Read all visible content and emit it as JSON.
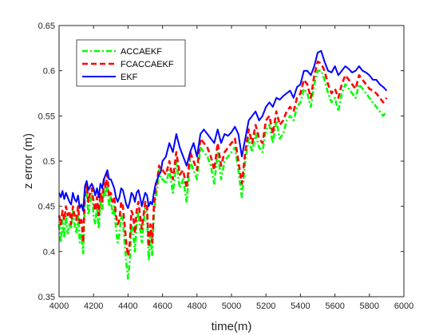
{
  "chart_data": {
    "type": "line",
    "xlabel": "time(m)",
    "ylabel": "z error (m)",
    "xlim": [
      4000,
      6000
    ],
    "ylim": [
      0.35,
      0.65
    ],
    "xticks": [
      4000,
      4200,
      4400,
      4600,
      4800,
      5000,
      5200,
      5400,
      5600,
      5800,
      6000
    ],
    "yticks": [
      0.35,
      0.4,
      0.45,
      0.5,
      0.55,
      0.6,
      0.65
    ],
    "xtick_labels": [
      "4000",
      "4200",
      "4400",
      "4600",
      "4800",
      "5000",
      "5200",
      "5400",
      "5600",
      "5800",
      "6000"
    ],
    "ytick_labels": [
      "0.35",
      "0.4",
      "0.45",
      "0.5",
      "0.55",
      "0.6",
      "0.65"
    ],
    "grid": false,
    "legend_position": "top-left",
    "series": [
      {
        "name": "ACCAEKF",
        "color": "#00ff00",
        "style": "dash-dot",
        "x": [
          4000,
          4010,
          4020,
          4030,
          4040,
          4050,
          4060,
          4070,
          4080,
          4090,
          4100,
          4110,
          4120,
          4130,
          4140,
          4150,
          4160,
          4170,
          4180,
          4190,
          4200,
          4210,
          4220,
          4230,
          4240,
          4250,
          4260,
          4270,
          4280,
          4290,
          4300,
          4310,
          4320,
          4330,
          4340,
          4350,
          4360,
          4370,
          4380,
          4390,
          4400,
          4410,
          4420,
          4430,
          4440,
          4450,
          4460,
          4470,
          4480,
          4490,
          4500,
          4510,
          4520,
          4530,
          4540,
          4550,
          4560,
          4570,
          4580,
          4590,
          4600,
          4620,
          4640,
          4660,
          4680,
          4700,
          4720,
          4740,
          4760,
          4780,
          4800,
          4820,
          4840,
          4860,
          4880,
          4900,
          4920,
          4940,
          4960,
          4980,
          5000,
          5020,
          5040,
          5060,
          5080,
          5100,
          5120,
          5140,
          5160,
          5180,
          5200,
          5220,
          5240,
          5260,
          5280,
          5300,
          5320,
          5340,
          5360,
          5380,
          5400,
          5420,
          5440,
          5460,
          5480,
          5500,
          5520,
          5540,
          5560,
          5580,
          5600,
          5620,
          5640,
          5660,
          5680,
          5700,
          5720,
          5740,
          5760,
          5780,
          5800,
          5820,
          5840,
          5860,
          5880,
          5900
        ],
        "y": [
          0.43,
          0.41,
          0.435,
          0.415,
          0.44,
          0.42,
          0.43,
          0.425,
          0.445,
          0.43,
          0.42,
          0.44,
          0.41,
          0.42,
          0.398,
          0.46,
          0.47,
          0.44,
          0.455,
          0.465,
          0.44,
          0.43,
          0.45,
          0.425,
          0.455,
          0.445,
          0.47,
          0.46,
          0.475,
          0.45,
          0.46,
          0.44,
          0.45,
          0.425,
          0.41,
          0.42,
          0.44,
          0.435,
          0.41,
          0.388,
          0.37,
          0.39,
          0.43,
          0.42,
          0.4,
          0.43,
          0.445,
          0.425,
          0.41,
          0.43,
          0.45,
          0.44,
          0.39,
          0.42,
          0.395,
          0.44,
          0.46,
          0.47,
          0.49,
          0.48,
          0.48,
          0.475,
          0.49,
          0.465,
          0.5,
          0.47,
          0.48,
          0.455,
          0.5,
          0.49,
          0.48,
          0.515,
          0.51,
          0.505,
          0.495,
          0.475,
          0.51,
          0.48,
          0.5,
          0.505,
          0.51,
          0.515,
          0.49,
          0.46,
          0.5,
          0.525,
          0.51,
          0.53,
          0.515,
          0.51,
          0.535,
          0.54,
          0.52,
          0.545,
          0.525,
          0.53,
          0.545,
          0.55,
          0.545,
          0.56,
          0.565,
          0.58,
          0.575,
          0.56,
          0.585,
          0.6,
          0.6,
          0.59,
          0.575,
          0.565,
          0.57,
          0.555,
          0.575,
          0.585,
          0.58,
          0.575,
          0.57,
          0.585,
          0.58,
          0.575,
          0.57,
          0.565,
          0.56,
          0.555,
          0.55,
          0.555
        ]
      },
      {
        "name": "FCACCAEKF",
        "color": "#ff0000",
        "style": "dashed",
        "x": [
          4000,
          4010,
          4020,
          4030,
          4040,
          4050,
          4060,
          4070,
          4080,
          4090,
          4100,
          4110,
          4120,
          4130,
          4140,
          4150,
          4160,
          4170,
          4180,
          4190,
          4200,
          4210,
          4220,
          4230,
          4240,
          4250,
          4260,
          4270,
          4280,
          4290,
          4300,
          4310,
          4320,
          4330,
          4340,
          4350,
          4360,
          4370,
          4380,
          4390,
          4400,
          4410,
          4420,
          4430,
          4440,
          4450,
          4460,
          4470,
          4480,
          4490,
          4500,
          4510,
          4520,
          4530,
          4540,
          4550,
          4560,
          4570,
          4580,
          4590,
          4600,
          4620,
          4640,
          4660,
          4680,
          4700,
          4720,
          4740,
          4760,
          4780,
          4800,
          4820,
          4840,
          4860,
          4880,
          4900,
          4920,
          4940,
          4960,
          4980,
          5000,
          5020,
          5040,
          5060,
          5080,
          5100,
          5120,
          5140,
          5160,
          5180,
          5200,
          5220,
          5240,
          5260,
          5280,
          5300,
          5320,
          5340,
          5360,
          5380,
          5400,
          5420,
          5440,
          5460,
          5480,
          5500,
          5520,
          5540,
          5560,
          5580,
          5600,
          5620,
          5640,
          5660,
          5680,
          5700,
          5720,
          5740,
          5760,
          5780,
          5800,
          5820,
          5840,
          5860,
          5880,
          5900
        ],
        "y": [
          0.44,
          0.43,
          0.445,
          0.435,
          0.45,
          0.44,
          0.445,
          0.43,
          0.45,
          0.44,
          0.435,
          0.45,
          0.43,
          0.435,
          0.41,
          0.465,
          0.475,
          0.455,
          0.465,
          0.47,
          0.455,
          0.445,
          0.46,
          0.44,
          0.465,
          0.455,
          0.48,
          0.47,
          0.485,
          0.46,
          0.465,
          0.455,
          0.46,
          0.44,
          0.43,
          0.435,
          0.455,
          0.45,
          0.43,
          0.41,
          0.395,
          0.41,
          0.445,
          0.44,
          0.42,
          0.445,
          0.455,
          0.44,
          0.425,
          0.44,
          0.455,
          0.45,
          0.405,
          0.43,
          0.41,
          0.45,
          0.47,
          0.48,
          0.495,
          0.49,
          0.49,
          0.485,
          0.5,
          0.48,
          0.51,
          0.485,
          0.49,
          0.47,
          0.51,
          0.5,
          0.49,
          0.525,
          0.52,
          0.515,
          0.505,
          0.49,
          0.52,
          0.495,
          0.51,
          0.515,
          0.52,
          0.525,
          0.5,
          0.475,
          0.51,
          0.535,
          0.52,
          0.54,
          0.525,
          0.52,
          0.545,
          0.55,
          0.53,
          0.555,
          0.54,
          0.545,
          0.555,
          0.56,
          0.555,
          0.57,
          0.575,
          0.59,
          0.585,
          0.57,
          0.595,
          0.61,
          0.608,
          0.6,
          0.585,
          0.575,
          0.58,
          0.57,
          0.585,
          0.595,
          0.59,
          0.585,
          0.58,
          0.595,
          0.59,
          0.585,
          0.58,
          0.578,
          0.575,
          0.57,
          0.565,
          0.57
        ]
      },
      {
        "name": "EKF",
        "color": "#0000ff",
        "style": "solid",
        "x": [
          4000,
          4010,
          4020,
          4030,
          4040,
          4050,
          4060,
          4070,
          4080,
          4090,
          4100,
          4110,
          4120,
          4130,
          4140,
          4150,
          4160,
          4170,
          4180,
          4190,
          4200,
          4210,
          4220,
          4230,
          4240,
          4250,
          4260,
          4270,
          4280,
          4290,
          4300,
          4310,
          4320,
          4330,
          4340,
          4350,
          4360,
          4370,
          4380,
          4390,
          4400,
          4410,
          4420,
          4430,
          4440,
          4450,
          4460,
          4470,
          4480,
          4490,
          4500,
          4510,
          4520,
          4530,
          4540,
          4550,
          4560,
          4570,
          4580,
          4590,
          4600,
          4620,
          4640,
          4660,
          4680,
          4700,
          4720,
          4740,
          4760,
          4780,
          4800,
          4820,
          4840,
          4860,
          4880,
          4900,
          4920,
          4940,
          4960,
          4980,
          5000,
          5020,
          5040,
          5060,
          5080,
          5100,
          5120,
          5140,
          5160,
          5180,
          5200,
          5220,
          5240,
          5260,
          5280,
          5300,
          5320,
          5340,
          5360,
          5380,
          5400,
          5420,
          5440,
          5460,
          5480,
          5500,
          5520,
          5540,
          5560,
          5580,
          5600,
          5620,
          5640,
          5660,
          5680,
          5700,
          5720,
          5740,
          5760,
          5780,
          5800,
          5820,
          5840,
          5860,
          5880,
          5900
        ],
        "y": [
          0.465,
          0.46,
          0.467,
          0.458,
          0.465,
          0.46,
          0.455,
          0.452,
          0.465,
          0.458,
          0.455,
          0.462,
          0.448,
          0.452,
          0.445,
          0.472,
          0.478,
          0.468,
          0.472,
          0.475,
          0.47,
          0.462,
          0.47,
          0.46,
          0.475,
          0.47,
          0.48,
          0.485,
          0.49,
          0.48,
          0.48,
          0.475,
          0.47,
          0.46,
          0.455,
          0.46,
          0.47,
          0.468,
          0.46,
          0.452,
          0.448,
          0.455,
          0.465,
          0.462,
          0.455,
          0.465,
          0.468,
          0.46,
          0.45,
          0.458,
          0.465,
          0.462,
          0.45,
          0.455,
          0.452,
          0.465,
          0.475,
          0.48,
          0.485,
          0.488,
          0.5,
          0.505,
          0.52,
          0.51,
          0.53,
          0.515,
          0.505,
          0.495,
          0.51,
          0.52,
          0.505,
          0.53,
          0.535,
          0.53,
          0.525,
          0.52,
          0.535,
          0.52,
          0.53,
          0.528,
          0.532,
          0.538,
          0.53,
          0.505,
          0.525,
          0.545,
          0.55,
          0.555,
          0.545,
          0.55,
          0.56,
          0.565,
          0.56,
          0.57,
          0.568,
          0.572,
          0.575,
          0.578,
          0.57,
          0.582,
          0.585,
          0.6,
          0.6,
          0.595,
          0.605,
          0.62,
          0.622,
          0.61,
          0.6,
          0.598,
          0.605,
          0.595,
          0.6,
          0.605,
          0.602,
          0.598,
          0.6,
          0.605,
          0.6,
          0.598,
          0.595,
          0.59,
          0.59,
          0.585,
          0.582,
          0.578
        ]
      }
    ]
  }
}
